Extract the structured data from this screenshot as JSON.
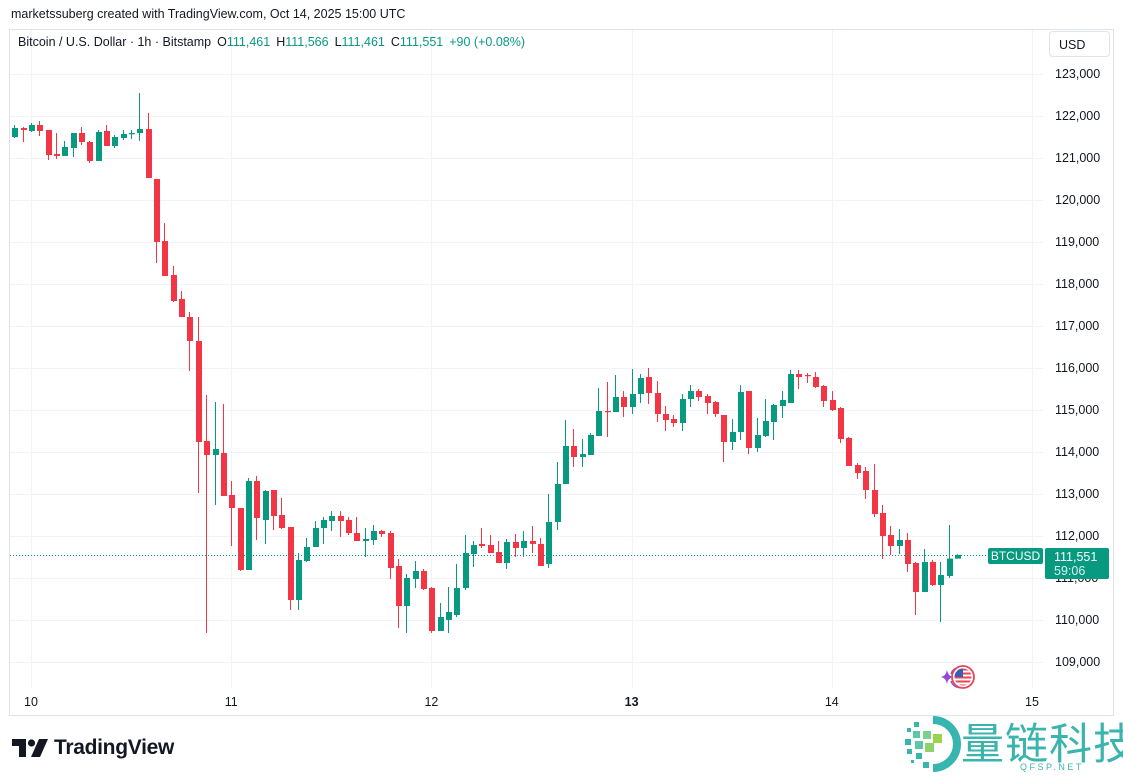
{
  "header": {
    "caption": "marketssuberg created with TradingView.com, Oct 14, 2025 15:00 UTC"
  },
  "legend": {
    "symbol": "Bitcoin / U.S. Dollar · 1h · Bitstamp",
    "o_label": "O",
    "o": "111,461",
    "h_label": "H",
    "h": "111,566",
    "l_label": "L",
    "l": "111,461",
    "c_label": "C",
    "c": "111,551",
    "change": "+90 (+0.08%)"
  },
  "currency_button": {
    "label": "USD"
  },
  "price_tag": {
    "symbol": "BTCUSD",
    "price": "111,551",
    "countdown": "59:06"
  },
  "footer": {
    "logo_text": "TradingView"
  },
  "watermark": {
    "title": "量链科技",
    "subtitle": "QFSP.NET"
  },
  "colors": {
    "up": "#089981",
    "down": "#F23645",
    "grid": "#F0F3FA",
    "text": "#131722",
    "border": "#E0E3EB"
  },
  "chart_data": {
    "type": "candlestick",
    "title": "Bitcoin / U.S. Dollar · 1h · Bitstamp",
    "xlabel": "",
    "ylabel": "USD",
    "interval": "1h",
    "ylim": [
      108400,
      124050
    ],
    "xlim_hours": [
      -2.6,
      121.2
    ],
    "grid": true,
    "legend_position": "top-left",
    "y_ticks": [
      123000,
      122000,
      121000,
      120000,
      119000,
      118000,
      117000,
      116000,
      115000,
      114000,
      113000,
      112000,
      111000,
      110000,
      109000
    ],
    "y_tick_labels": [
      "123,000",
      "122,000",
      "121,000",
      "120,000",
      "119,000",
      "118,000",
      "117,000",
      "116,000",
      "115,000",
      "114,000",
      "113,000",
      "112,000",
      "111,000",
      "110,000",
      "109,000"
    ],
    "x_ticks": [
      {
        "label": "10",
        "hour": 0,
        "bold": false
      },
      {
        "label": "11",
        "hour": 24,
        "bold": false
      },
      {
        "label": "12",
        "hour": 48,
        "bold": false
      },
      {
        "label": "13",
        "hour": 72,
        "bold": true
      },
      {
        "label": "14",
        "hour": 96,
        "bold": false
      },
      {
        "label": "15",
        "hour": 120,
        "bold": false
      }
    ],
    "x_start_hour": -2,
    "last_price": 111551,
    "candles_ohlc": [
      [
        121500,
        121786,
        121476,
        121714
      ],
      [
        121714,
        121738,
        121381,
        121667
      ],
      [
        121643,
        121833,
        121619,
        121786
      ],
      [
        121786,
        121881,
        121524,
        121643
      ],
      [
        121667,
        121667,
        120952,
        121071
      ],
      [
        121095,
        121595,
        120976,
        121048
      ],
      [
        121048,
        121405,
        121048,
        121262
      ],
      [
        121238,
        121595,
        121024,
        121595
      ],
      [
        121595,
        121738,
        121310,
        121381
      ],
      [
        121381,
        121405,
        120881,
        120929
      ],
      [
        120929,
        121667,
        120929,
        121619
      ],
      [
        121643,
        121786,
        121286,
        121286
      ],
      [
        121286,
        121548,
        121238,
        121500
      ],
      [
        121476,
        121667,
        121429,
        121571
      ],
      [
        121571,
        121667,
        121452,
        121595
      ],
      [
        121595,
        122548,
        121405,
        121690
      ],
      [
        121690,
        122071,
        120524,
        120524
      ],
      [
        120500,
        120500,
        118500,
        119000
      ],
      [
        119024,
        119452,
        118190,
        118190
      ],
      [
        118214,
        118429,
        117571,
        117595
      ],
      [
        117643,
        117833,
        117214,
        117214
      ],
      [
        117214,
        117333,
        115929,
        116643
      ],
      [
        116643,
        117214,
        113024,
        114238
      ],
      [
        114262,
        115357,
        109690,
        113929
      ],
      [
        113929,
        115190,
        112738,
        114071
      ],
      [
        113976,
        115143,
        112952,
        112952
      ],
      [
        112976,
        113310,
        111762,
        112667
      ],
      [
        112667,
        112667,
        111167,
        111190
      ],
      [
        111190,
        113381,
        111190,
        113310
      ],
      [
        113310,
        113429,
        111905,
        112429
      ],
      [
        112381,
        113095,
        111810,
        113071
      ],
      [
        113095,
        113095,
        112143,
        112476
      ],
      [
        112500,
        112905,
        112167,
        112190
      ],
      [
        112214,
        112214,
        110238,
        110476
      ],
      [
        110476,
        111595,
        110238,
        111429
      ],
      [
        111405,
        111952,
        111381,
        111738
      ],
      [
        111738,
        112357,
        111738,
        112190
      ],
      [
        112190,
        112452,
        111810,
        112381
      ],
      [
        112357,
        112595,
        112119,
        112476
      ],
      [
        112476,
        112595,
        111976,
        112357
      ],
      [
        112381,
        112452,
        112024,
        112071
      ],
      [
        112071,
        112452,
        111881,
        111881
      ],
      [
        111881,
        112190,
        111500,
        111929
      ],
      [
        111905,
        112262,
        111786,
        112119
      ],
      [
        112119,
        112143,
        111976,
        112048
      ],
      [
        112071,
        112119,
        110976,
        111238
      ],
      [
        111286,
        111452,
        109810,
        110333
      ],
      [
        110333,
        111095,
        109690,
        111000
      ],
      [
        110976,
        111405,
        110762,
        111167
      ],
      [
        111167,
        111214,
        110714,
        110738
      ],
      [
        110762,
        110786,
        109690,
        109738
      ],
      [
        109738,
        110405,
        109738,
        110071
      ],
      [
        110000,
        110786,
        109690,
        110190
      ],
      [
        110119,
        111333,
        110071,
        110762
      ],
      [
        110762,
        112024,
        110714,
        111595
      ],
      [
        111571,
        111881,
        111262,
        111786
      ],
      [
        111810,
        112190,
        111714,
        111762
      ],
      [
        111786,
        112024,
        111595,
        111595
      ],
      [
        111619,
        111881,
        111357,
        111357
      ],
      [
        111357,
        111929,
        111214,
        111857
      ],
      [
        111857,
        112048,
        111500,
        111714
      ],
      [
        111714,
        112119,
        111500,
        111881
      ],
      [
        111881,
        112238,
        111595,
        111810
      ],
      [
        111810,
        111952,
        111286,
        111286
      ],
      [
        111333,
        113000,
        111238,
        112333
      ],
      [
        112333,
        113762,
        112143,
        113238
      ],
      [
        113238,
        114762,
        113238,
        114143
      ],
      [
        114143,
        114548,
        113643,
        113881
      ],
      [
        113881,
        114310,
        113643,
        113952
      ],
      [
        113929,
        114452,
        113929,
        114405
      ],
      [
        114381,
        115524,
        114381,
        114976
      ],
      [
        114976,
        115667,
        114357,
        114952
      ],
      [
        114952,
        115833,
        114952,
        115310
      ],
      [
        115310,
        115452,
        114833,
        115071
      ],
      [
        115071,
        115976,
        114905,
        115381
      ],
      [
        115381,
        115857,
        115167,
        115762
      ],
      [
        115786,
        116000,
        115143,
        115405
      ],
      [
        115405,
        115690,
        114714,
        114905
      ],
      [
        114905,
        115095,
        114500,
        114762
      ],
      [
        114786,
        114881,
        114595,
        114690
      ],
      [
        114690,
        115381,
        114500,
        115262
      ],
      [
        115262,
        115595,
        115071,
        115452
      ],
      [
        115452,
        115500,
        115214,
        115310
      ],
      [
        115333,
        115381,
        114905,
        115167
      ],
      [
        115190,
        115214,
        114833,
        114905
      ],
      [
        114881,
        114881,
        113762,
        114238
      ],
      [
        114238,
        114786,
        114048,
        114476
      ],
      [
        114476,
        115595,
        114286,
        115429
      ],
      [
        115452,
        115452,
        113952,
        114095
      ],
      [
        114095,
        114810,
        114000,
        114405
      ],
      [
        114381,
        115262,
        114357,
        114738
      ],
      [
        114714,
        115143,
        114286,
        115119
      ],
      [
        115095,
        115452,
        114810,
        115238
      ],
      [
        115167,
        115952,
        115167,
        115857
      ],
      [
        115857,
        115952,
        115500,
        115786
      ],
      [
        115833,
        115881,
        115643,
        115810
      ],
      [
        115786,
        115905,
        115524,
        115548
      ],
      [
        115571,
        115595,
        115071,
        115214
      ],
      [
        115238,
        115452,
        114976,
        115000
      ],
      [
        115048,
        115071,
        114214,
        114310
      ],
      [
        114333,
        114357,
        113667,
        113667
      ],
      [
        113690,
        113738,
        113357,
        113500
      ],
      [
        113548,
        113643,
        112881,
        113095
      ],
      [
        113095,
        113714,
        112452,
        112524
      ],
      [
        112548,
        112738,
        111452,
        112000
      ],
      [
        112024,
        112238,
        111548,
        111762
      ],
      [
        111762,
        112167,
        111571,
        111905
      ],
      [
        111905,
        112071,
        111143,
        111333
      ],
      [
        111357,
        111381,
        110119,
        110667
      ],
      [
        110667,
        111690,
        110667,
        111381
      ],
      [
        111381,
        111429,
        110810,
        110833
      ],
      [
        110833,
        111381,
        109952,
        111071
      ],
      [
        111048,
        112262,
        111000,
        111461
      ],
      [
        111461,
        111566,
        111461,
        111551
      ]
    ]
  }
}
